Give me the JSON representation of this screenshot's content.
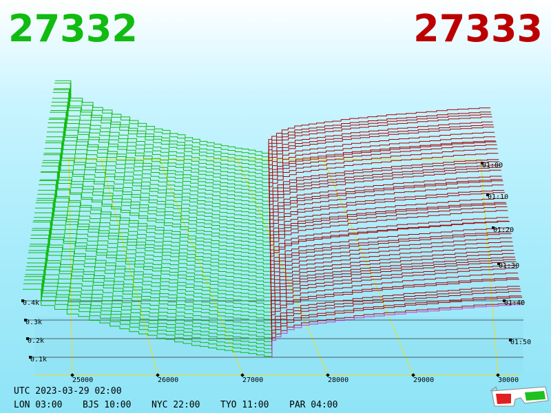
{
  "header": {
    "bid": "27332",
    "ask": "27333"
  },
  "price_axis": [
    "25000",
    "26000",
    "27000",
    "28000",
    "29000",
    "30000"
  ],
  "volume_axis": [
    "0.4k",
    "0.3k",
    "0.2k",
    "0.1k"
  ],
  "time_axis": [
    "01:00",
    "01:10",
    "01:20",
    "01:30",
    "01:40",
    "01:50"
  ],
  "footer": {
    "utc": "UTC 2023-03-29 02:00",
    "clocks": [
      "LON 03:00",
      "BJS 10:00",
      "NYC 22:00",
      "TYO 11:00",
      "PAR 04:00"
    ]
  }
}
